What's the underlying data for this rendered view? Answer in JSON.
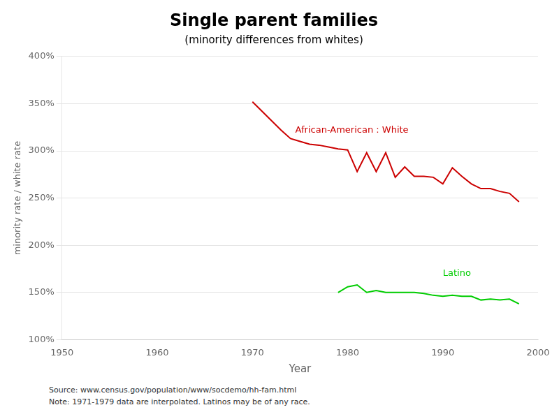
{
  "chart_data": {
    "type": "line",
    "title": "Single parent families",
    "subtitle": "(minority differences from whites)",
    "xlabel": "Year",
    "ylabel": "minority rate / white rate",
    "xlim": [
      1950,
      2000
    ],
    "xticks": [
      1950,
      1960,
      1970,
      1980,
      1990,
      2000
    ],
    "ylim": [
      1.0,
      4.0
    ],
    "yticks": [
      {
        "value": 1.0,
        "label": "100%"
      },
      {
        "value": 1.5,
        "label": "150%"
      },
      {
        "value": 2.0,
        "label": "200%"
      },
      {
        "value": 2.5,
        "label": "250%"
      },
      {
        "value": 3.0,
        "label": "300%"
      },
      {
        "value": 3.5,
        "label": "350%"
      },
      {
        "value": 4.0,
        "label": "400%"
      }
    ],
    "grid": "y",
    "series": [
      {
        "color": "#cc0000",
        "marker": "none",
        "line_style": "solid",
        "x": [
          1970,
          1971,
          1972,
          1973,
          1974,
          1975,
          1976,
          1977,
          1978,
          1979,
          1980,
          1981,
          1982,
          1983,
          1984,
          1985,
          1986,
          1987,
          1988,
          1989,
          1990,
          1991,
          1992,
          1993,
          1994,
          1995,
          1996,
          1997,
          1998
        ],
        "values": [
          3.52,
          3.42,
          3.32,
          3.22,
          3.13,
          3.1,
          3.07,
          3.06,
          3.04,
          3.02,
          3.01,
          2.78,
          2.98,
          2.78,
          2.98,
          2.72,
          2.83,
          2.73,
          2.73,
          2.72,
          2.65,
          2.82,
          2.73,
          2.65,
          2.6,
          2.6,
          2.57,
          2.55,
          2.46
        ]
      },
      {
        "color": "#00cc00",
        "marker": "none",
        "line_style": "solid",
        "x": [
          1979,
          1980,
          1981,
          1982,
          1983,
          1984,
          1985,
          1986,
          1987,
          1988,
          1989,
          1990,
          1991,
          1992,
          1993,
          1994,
          1995,
          1996,
          1997,
          1998
        ],
        "values": [
          1.5,
          1.56,
          1.58,
          1.5,
          1.52,
          1.5,
          1.5,
          1.5,
          1.5,
          1.49,
          1.47,
          1.46,
          1.47,
          1.46,
          1.46,
          1.42,
          1.43,
          1.42,
          1.43,
          1.38
        ]
      }
    ],
    "annotations": [
      {
        "text": "African-American : White",
        "x": 1974.5,
        "y": 3.22,
        "color": "#cc0000"
      },
      {
        "text": "Latino",
        "x": 1990.0,
        "y": 1.7,
        "color": "#00cc00"
      }
    ],
    "source": "Source:  www.census.gov/population/www/socdemo/hh-fam.html",
    "note": "Note: 1971-1979 data are interpolated.  Latinos may be  of any race."
  }
}
